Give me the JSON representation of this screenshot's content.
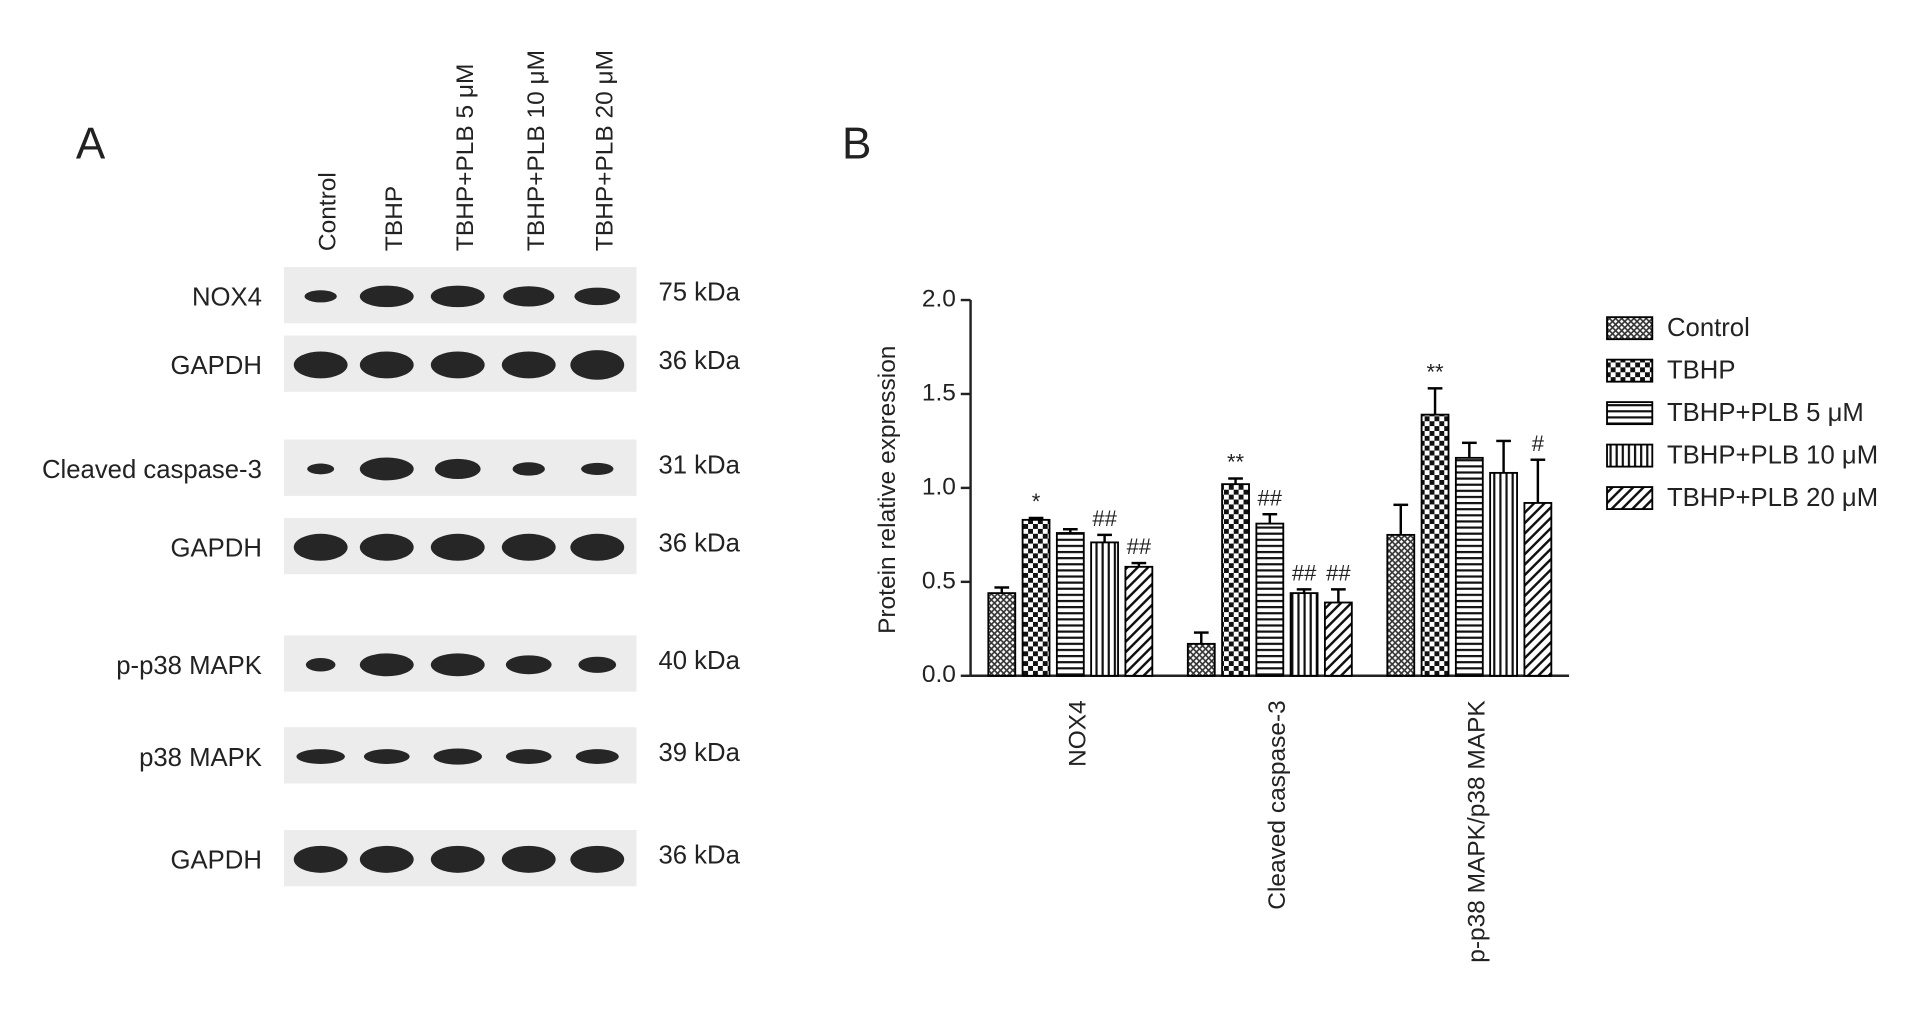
{
  "western_blot": {
    "panel_label": "A",
    "lanes": [
      "Control",
      "TBHP",
      "TBHP+PLB 5 μM",
      "TBHP+PLB 10 μM",
      "TBHP+PLB 20 μM"
    ],
    "rows": [
      {
        "protein": "NOX4",
        "size": "75 kDa"
      },
      {
        "protein": "GAPDH",
        "size": "36 kDa"
      },
      {
        "protein": "Cleaved caspase-3",
        "size": "31 kDa"
      },
      {
        "protein": "GAPDH",
        "size": "36 kDa"
      },
      {
        "protein": "p-p38 MAPK",
        "size": "40 kDa"
      },
      {
        "protein": "p38 MAPK",
        "size": "39 kDa"
      },
      {
        "protein": "GAPDH",
        "size": "36 kDa"
      }
    ]
  },
  "chart_data": {
    "type": "bar",
    "panel_label": "B",
    "ylabel": "Protein relative expression",
    "categories": [
      "NOX4",
      "Cleaved caspase-3",
      "p-p38 MAPK/p38 MAPK"
    ],
    "ylim": [
      0,
      2
    ],
    "yticks": [
      {
        "value": 0,
        "label": "0.0"
      },
      {
        "value": 0.5,
        "label": "0.5"
      },
      {
        "value": 1,
        "label": "1.0"
      },
      {
        "value": 1.5,
        "label": "1.5"
      },
      {
        "value": 2,
        "label": "2.0"
      }
    ],
    "legend": "right",
    "series": [
      {
        "name": "Control",
        "color": "#000000",
        "pattern": "crosshatch",
        "values": [
          0.44,
          0.17,
          0.75
        ],
        "errors": [
          0.03,
          0.06,
          0.16
        ],
        "annotations": [
          null,
          null,
          null
        ]
      },
      {
        "name": "TBHP",
        "color": "#000000",
        "pattern": "checker",
        "values": [
          0.83,
          1.02,
          1.39
        ],
        "errors": [
          0.01,
          0.03,
          0.14
        ],
        "annotations": [
          "*",
          "**",
          "**"
        ]
      },
      {
        "name": "TBHP+PLB 5 μM",
        "color": "#000000",
        "pattern": "hlines",
        "values": [
          0.76,
          0.81,
          1.16
        ],
        "errors": [
          0.02,
          0.05,
          0.08
        ],
        "annotations": [
          null,
          "##",
          null
        ]
      },
      {
        "name": "TBHP+PLB 10 μM",
        "color": "#000000",
        "pattern": "vlines",
        "values": [
          0.71,
          0.44,
          1.08
        ],
        "errors": [
          0.04,
          0.02,
          0.17
        ],
        "annotations": [
          "##",
          "##",
          null
        ]
      },
      {
        "name": "TBHP+PLB 20 μM",
        "color": "#000000",
        "pattern": "diagonal",
        "values": [
          0.58,
          0.39,
          0.92
        ],
        "errors": [
          0.02,
          0.07,
          0.23
        ],
        "annotations": [
          "##",
          "##",
          "#"
        ]
      }
    ]
  }
}
